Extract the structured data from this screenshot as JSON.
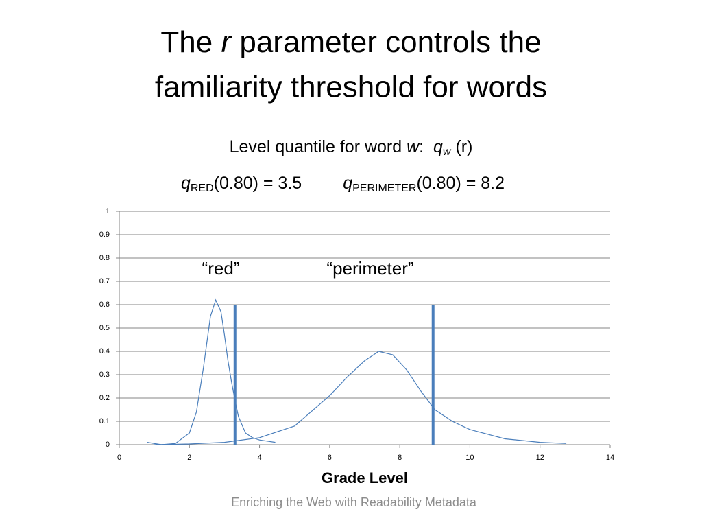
{
  "slide": {
    "title_line1": [
      "The ",
      "r",
      " parameter controls the"
    ],
    "title_line2": "familiarity threshold for words",
    "subtitle_line1": [
      "Level quantile for word ",
      "w",
      ":  ",
      "q",
      "w",
      " (r)"
    ],
    "subtitle_line2": [
      "q",
      "RED",
      "(0.80) = 3.5",
      "q",
      "PERIMETER",
      "(0.80) = 8.2"
    ],
    "footer": "Enriching the Web with Readability Metadata"
  },
  "chart_data": {
    "type": "line",
    "x_label": "Grade Level",
    "annotations": [
      "“red”",
      "“perimeter”"
    ],
    "xlim": [
      0,
      14
    ],
    "xticks": [
      0,
      2,
      4,
      6,
      8,
      10,
      12,
      14
    ],
    "ylim": [
      0,
      1
    ],
    "yticks": [
      0,
      0.1,
      0.2,
      0.3,
      0.4,
      0.5,
      0.6,
      0.7,
      0.8,
      0.9,
      1
    ],
    "grid": true,
    "series": [
      {
        "color": "#4a7ebb",
        "x": [
          0.8,
          1.2,
          1.6,
          2.0,
          2.2,
          2.4,
          2.6,
          2.75,
          2.9,
          3.0,
          3.1,
          3.2,
          3.3,
          3.4,
          3.6,
          3.8,
          4.0,
          4.45
        ],
        "values": [
          0.01,
          0.0,
          0.005,
          0.05,
          0.14,
          0.33,
          0.55,
          0.62,
          0.57,
          0.47,
          0.36,
          0.27,
          0.19,
          0.12,
          0.05,
          0.03,
          0.02,
          0.01
        ]
      },
      {
        "color": "#4a7ebb",
        "x": [
          1.0,
          2,
          3,
          4,
          5,
          6,
          6.5,
          7,
          7.4,
          7.8,
          8.2,
          8.6,
          9,
          9.5,
          10,
          11,
          12,
          12.75
        ],
        "values": [
          0.0,
          0.003,
          0.01,
          0.03,
          0.08,
          0.21,
          0.29,
          0.36,
          0.4,
          0.385,
          0.32,
          0.23,
          0.15,
          0.1,
          0.065,
          0.025,
          0.01,
          0.005
        ]
      }
    ],
    "markers": {
      "color": "#4a7ebb",
      "items": [
        {
          "x": 3.3,
          "value": 0.6
        },
        {
          "x": 8.95,
          "value": 0.6
        }
      ]
    }
  }
}
